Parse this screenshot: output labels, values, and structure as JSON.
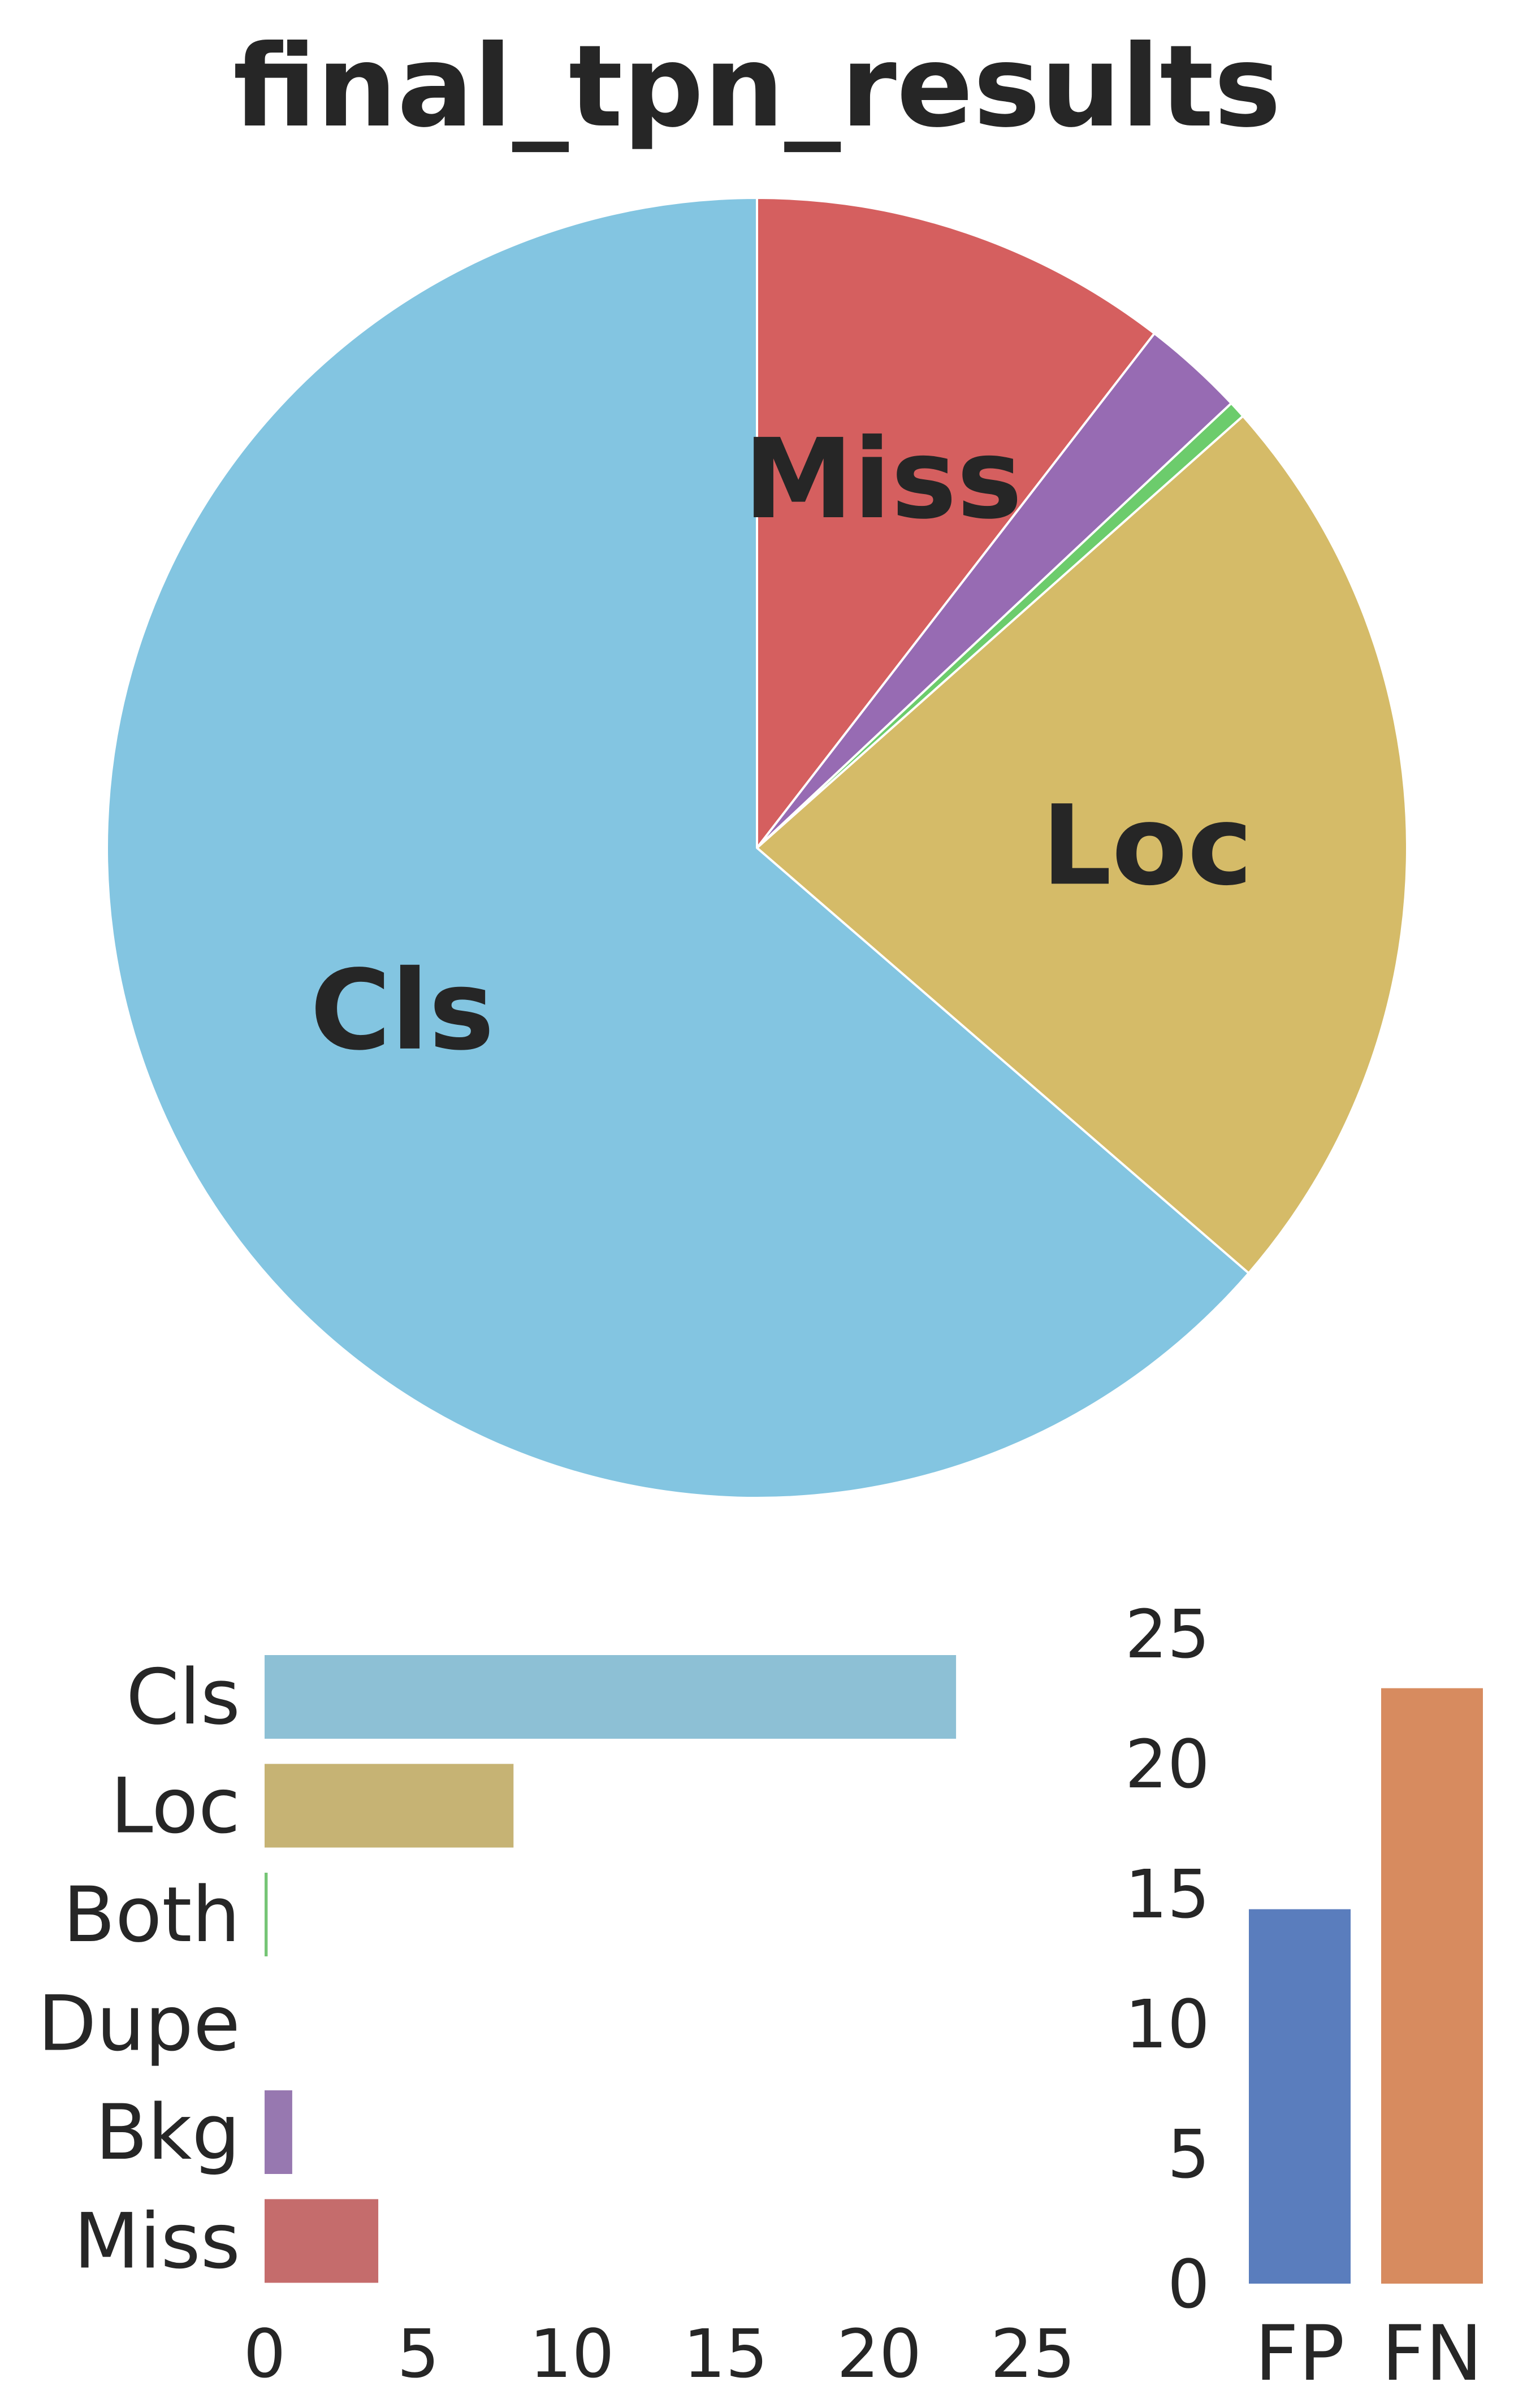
{
  "title": "final_tpn_results",
  "colors": {
    "Cls": "#83c5e1",
    "Loc": "#d5bb68",
    "Both": "#6ccc6c",
    "Dupe": "#c44e52",
    "Bkg": "#976bb3",
    "Miss": "#d55f5f",
    "Cls_bar": "#8dc0d5",
    "Loc_bar": "#c6b374",
    "Both_bar": "#76c576",
    "Bkg_bar": "#9778b0",
    "Miss_bar": "#c56c6c",
    "FP": "#5a7dbd",
    "FN": "#d78b5f",
    "text": "#262626"
  },
  "chart_data": [
    {
      "type": "pie",
      "title": "final_tpn_results",
      "slices": [
        {
          "label": "Miss",
          "value": 3.7,
          "shown_label": "Miss",
          "color_key": "Miss"
        },
        {
          "label": "Bkg",
          "value": 0.9,
          "shown_label": "",
          "color_key": "Bkg"
        },
        {
          "label": "Both",
          "value": 0.15,
          "shown_label": "",
          "color_key": "Both"
        },
        {
          "label": "Loc",
          "value": 8.1,
          "shown_label": "Loc",
          "color_key": "Loc"
        },
        {
          "label": "Cls",
          "value": 22.5,
          "shown_label": "Cls",
          "color_key": "Cls"
        }
      ]
    },
    {
      "type": "bar",
      "orientation": "horizontal",
      "categories": [
        "Cls",
        "Loc",
        "Both",
        "Dupe",
        "Bkg",
        "Miss"
      ],
      "values": [
        22.5,
        8.1,
        0.1,
        0,
        0.9,
        3.7
      ],
      "color_keys": [
        "Cls_bar",
        "Loc_bar",
        "Both_bar",
        "Dupe",
        "Bkg_bar",
        "Miss_bar"
      ],
      "xlim": [
        0,
        25
      ],
      "xticks": [
        "0",
        "5",
        "10",
        "15",
        "20",
        "25"
      ]
    },
    {
      "type": "bar",
      "orientation": "vertical",
      "categories": [
        "FP",
        "FN"
      ],
      "values": [
        14.4,
        22.9
      ],
      "color_keys": [
        "FP",
        "FN"
      ],
      "ylim": [
        0,
        25
      ],
      "yticks": [
        "0",
        "5",
        "10",
        "15",
        "20",
        "25"
      ]
    }
  ]
}
